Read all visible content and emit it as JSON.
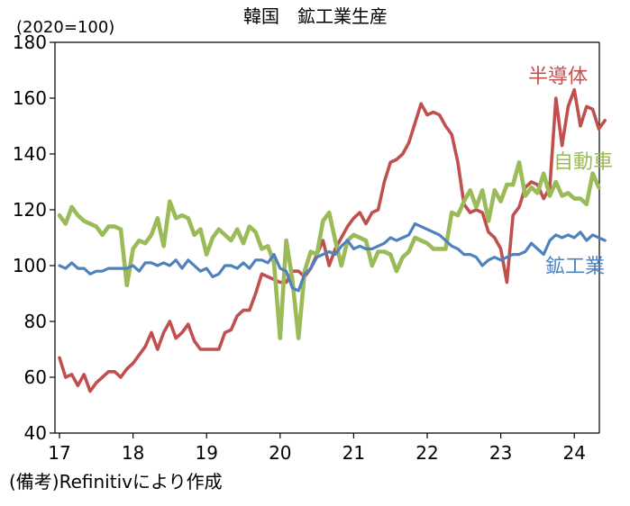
{
  "chart_data": {
    "type": "line",
    "title": "韓国　鉱工業生産",
    "unit_label": "(2020=100)",
    "note": "(備考)Refinitivにより作成",
    "xlabel": "",
    "ylabel": "",
    "ylim": [
      40,
      180
    ],
    "y_ticks": [
      "40",
      "60",
      "80",
      "100",
      "120",
      "140",
      "160",
      "180"
    ],
    "x_ticks": [
      "17",
      "18",
      "19",
      "20",
      "21",
      "22",
      "23",
      "24"
    ],
    "x_start": "2017-01",
    "grid": false,
    "legend": "inline labels at right end of each line",
    "series": [
      {
        "name": "半導体",
        "color": "#c0504d",
        "values": [
          67,
          60,
          61,
          57,
          61,
          55,
          58,
          60,
          62,
          62,
          60,
          63,
          65,
          68,
          71,
          76,
          70,
          76,
          80,
          74,
          76,
          79,
          73,
          70,
          70,
          70,
          70,
          76,
          77,
          82,
          84,
          84,
          90,
          97,
          96,
          95,
          94,
          94,
          98,
          98,
          96,
          99,
          104,
          109,
          100,
          106,
          110,
          114,
          117,
          119,
          115,
          119,
          120,
          130,
          137,
          138,
          140,
          144,
          151,
          158,
          154,
          155,
          154,
          150,
          147,
          137,
          122,
          119,
          120,
          119,
          112,
          110,
          106,
          94,
          118,
          121,
          128,
          130,
          129,
          124,
          128,
          160,
          143,
          157,
          163,
          150,
          157,
          156,
          149,
          152
        ],
        "end_label": "半導体"
      },
      {
        "name": "自動車",
        "color": "#9bbb59",
        "values": [
          118,
          115,
          121,
          118,
          116,
          115,
          114,
          111,
          114,
          114,
          113,
          93,
          106,
          109,
          108,
          111,
          117,
          107,
          123,
          117,
          118,
          117,
          111,
          113,
          104,
          110,
          113,
          111,
          109,
          113,
          108,
          114,
          112,
          106,
          107,
          101,
          74,
          109,
          95,
          74,
          98,
          105,
          104,
          116,
          119,
          109,
          100,
          109,
          111,
          110,
          109,
          100,
          105,
          105,
          104,
          98,
          103,
          105,
          110,
          109,
          108,
          106,
          106,
          106,
          119,
          118,
          123,
          127,
          121,
          127,
          116,
          127,
          123,
          129,
          129,
          137,
          125,
          128,
          126,
          133,
          125,
          130,
          125,
          126,
          124,
          124,
          122,
          133,
          128
        ],
        "end_label": "自動車"
      },
      {
        "name": "鉱工業",
        "color": "#4f81bd",
        "values": [
          100,
          99,
          101,
          99,
          99,
          97,
          98,
          98,
          99,
          99,
          99,
          99,
          100,
          98,
          101,
          101,
          100,
          101,
          100,
          102,
          99,
          102,
          100,
          98,
          99,
          96,
          97,
          100,
          100,
          99,
          101,
          99,
          102,
          102,
          101,
          104,
          99,
          98,
          92,
          91,
          97,
          99,
          103,
          104,
          105,
          104,
          107,
          109,
          106,
          107,
          106,
          106,
          107,
          108,
          110,
          109,
          110,
          111,
          115,
          114,
          113,
          112,
          111,
          109,
          107,
          106,
          104,
          104,
          103,
          100,
          102,
          103,
          102,
          103,
          104,
          104,
          105,
          108,
          106,
          104,
          109,
          111,
          110,
          111,
          110,
          112,
          109,
          111,
          110,
          109
        ],
        "end_label": "鉱工業"
      }
    ]
  }
}
